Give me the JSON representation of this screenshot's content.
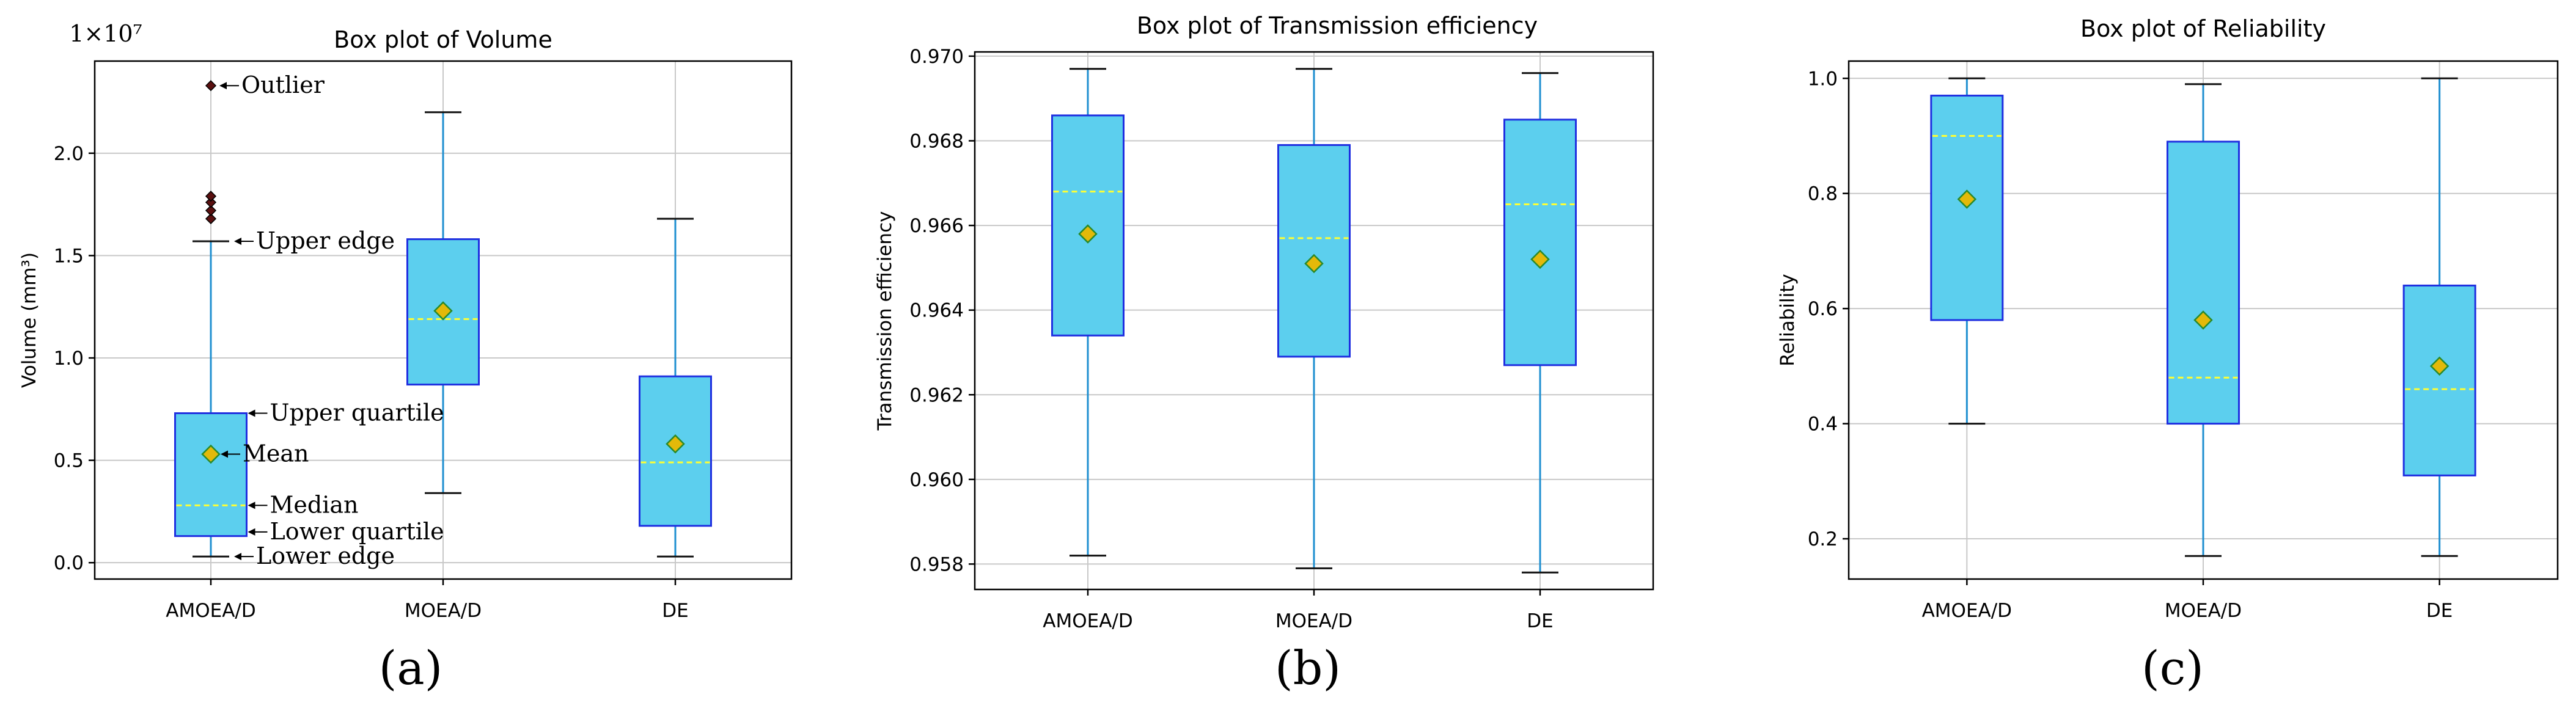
{
  "colors": {
    "box_fill": "#5ccfee",
    "box_edge": "#1f2fe0",
    "whisker": "#1f8fd0",
    "median": "#ffff33",
    "mean_fill": "#e3b90a",
    "mean_edge": "#2a8a2a",
    "outlier": "#5a1010",
    "grid": "#c8c8c8",
    "axis": "#000000"
  },
  "chart_data": [
    {
      "type": "box",
      "panel_label": "(a)",
      "title": "Box plot of Volume",
      "xlabel": "",
      "ylabel": "Volume (mm³)",
      "y_offset_label": "1×10⁷",
      "ylim": [
        -0.08,
        2.45
      ],
      "yticks": [
        0.0,
        0.5,
        1.0,
        1.5,
        2.0
      ],
      "ytick_labels": [
        "0.0",
        "0.5",
        "1.0",
        "1.5",
        "2.0"
      ],
      "grid": true,
      "categories": [
        "AMOEA/D",
        "MOEA/D",
        "DE"
      ],
      "boxes": [
        {
          "name": "AMOEA/D",
          "lower_whisker": 0.03,
          "q1": 0.13,
          "median": 0.28,
          "q3": 0.73,
          "upper_whisker": 1.57,
          "mean": 0.53,
          "outliers": [
            1.68,
            1.72,
            1.76,
            1.79,
            2.33
          ]
        },
        {
          "name": "MOEA/D",
          "lower_whisker": 0.34,
          "q1": 0.87,
          "median": 1.19,
          "q3": 1.58,
          "upper_whisker": 2.2,
          "mean": 1.23,
          "outliers": []
        },
        {
          "name": "DE",
          "lower_whisker": 0.03,
          "q1": 0.18,
          "median": 0.49,
          "q3": 0.91,
          "upper_whisker": 1.68,
          "mean": 0.58,
          "outliers": []
        }
      ],
      "annotations": [
        {
          "text": "Outlier",
          "at_y": 2.33
        },
        {
          "text": "Upper edge",
          "at_y": 1.57
        },
        {
          "text": "Upper quartile",
          "at_y": 0.73
        },
        {
          "text": "Mean",
          "at_y": 0.53
        },
        {
          "text": "Median",
          "at_y": 0.28
        },
        {
          "text": "Lower quartile",
          "at_y": 0.15
        },
        {
          "text": "Lower edge",
          "at_y": 0.03
        }
      ]
    },
    {
      "type": "box",
      "panel_label": "(b)",
      "title": "Box plot of Transmission efficiency",
      "xlabel": "",
      "ylabel": "Transmission efficiency",
      "ylim": [
        0.9574,
        0.9701
      ],
      "yticks": [
        0.958,
        0.96,
        0.962,
        0.964,
        0.966,
        0.968,
        0.97
      ],
      "ytick_labels": [
        "0.958",
        "0.960",
        "0.962",
        "0.964",
        "0.966",
        "0.968",
        "0.970"
      ],
      "grid": true,
      "categories": [
        "AMOEA/D",
        "MOEA/D",
        "DE"
      ],
      "boxes": [
        {
          "name": "AMOEA/D",
          "lower_whisker": 0.9582,
          "q1": 0.9634,
          "median": 0.9668,
          "q3": 0.9686,
          "upper_whisker": 0.9697,
          "mean": 0.9658,
          "outliers": []
        },
        {
          "name": "MOEA/D",
          "lower_whisker": 0.9579,
          "q1": 0.9629,
          "median": 0.9657,
          "q3": 0.9679,
          "upper_whisker": 0.9697,
          "mean": 0.9651,
          "outliers": []
        },
        {
          "name": "DE",
          "lower_whisker": 0.9578,
          "q1": 0.9627,
          "median": 0.9665,
          "q3": 0.9685,
          "upper_whisker": 0.9696,
          "mean": 0.9652,
          "outliers": []
        }
      ]
    },
    {
      "type": "box",
      "panel_label": "(c)",
      "title": "Box plot of Reliability",
      "xlabel": "",
      "ylabel": "Reliability",
      "ylim": [
        0.13,
        1.03
      ],
      "yticks": [
        0.2,
        0.4,
        0.6,
        0.8,
        1.0
      ],
      "ytick_labels": [
        "0.2",
        "0.4",
        "0.6",
        "0.8",
        "1.0"
      ],
      "grid": true,
      "categories": [
        "AMOEA/D",
        "MOEA/D",
        "DE"
      ],
      "boxes": [
        {
          "name": "AMOEA/D",
          "lower_whisker": 0.4,
          "q1": 0.58,
          "median": 0.9,
          "q3": 0.97,
          "upper_whisker": 1.0,
          "mean": 0.79,
          "outliers": []
        },
        {
          "name": "MOEA/D",
          "lower_whisker": 0.17,
          "q1": 0.4,
          "median": 0.48,
          "q3": 0.89,
          "upper_whisker": 0.99,
          "mean": 0.58,
          "outliers": []
        },
        {
          "name": "DE",
          "lower_whisker": 0.17,
          "q1": 0.31,
          "median": 0.46,
          "q3": 0.64,
          "upper_whisker": 1.0,
          "mean": 0.5,
          "outliers": []
        }
      ]
    }
  ]
}
